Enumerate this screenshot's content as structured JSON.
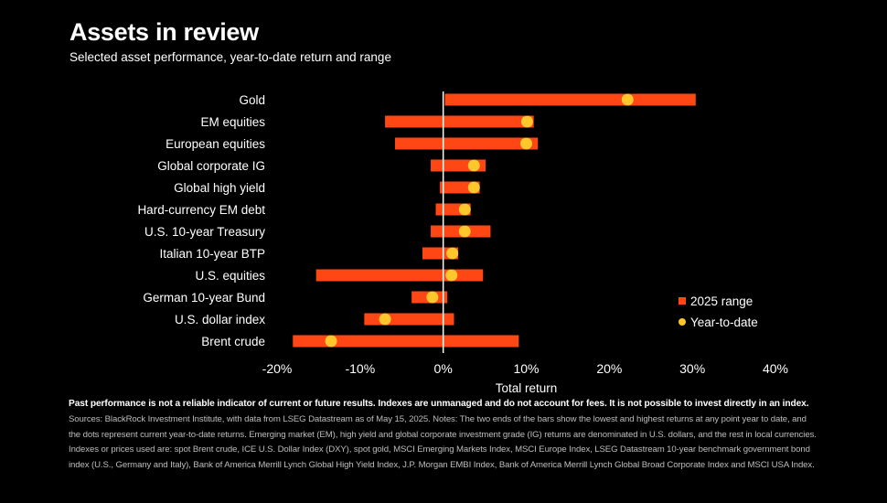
{
  "header": {
    "title": "Assets in review",
    "subtitle": "Selected asset performance, year-to-date return and range"
  },
  "chart_data": {
    "type": "bar",
    "subtype": "floating range bars with dot markers (horizontal)",
    "categories": [
      "Gold",
      "EM equities",
      "European equities",
      "Global corporate IG",
      "Global high yield",
      "Hard-currency EM debt",
      "U.S. 10-year Treasury",
      "Italian 10-year BTP",
      "U.S. equities",
      "German 10-year Bund",
      "U.S. dollar index",
      "Brent crude"
    ],
    "series": [
      {
        "name": "2025 range",
        "kind": "range",
        "color": "#ff4713",
        "low": [
          0.2,
          -7.0,
          -5.8,
          -1.5,
          -0.4,
          -0.9,
          -1.5,
          -2.5,
          -15.3,
          -3.8,
          -9.5,
          -18.1
        ],
        "high": [
          30.4,
          10.9,
          11.4,
          5.1,
          4.4,
          3.3,
          5.7,
          1.8,
          4.8,
          0.5,
          1.3,
          9.1
        ]
      },
      {
        "name": "Year-to-date",
        "kind": "dot",
        "color": "#ffc72c",
        "values": [
          22.2,
          10.1,
          10.0,
          3.7,
          3.7,
          2.6,
          2.6,
          1.1,
          1.0,
          -1.3,
          -7.0,
          -13.5
        ]
      }
    ],
    "xlabel": "Total return",
    "xlim": [
      -20,
      40
    ],
    "xticks": [
      -20,
      -10,
      0,
      10,
      20,
      30,
      40
    ],
    "xtick_labels": [
      "-20%",
      "-10%",
      "0%",
      "10%",
      "20%",
      "30%",
      "40%"
    ],
    "grid": false,
    "legend_position": "bottom-right",
    "legend": [
      "2025 range",
      "Year-to-date"
    ]
  },
  "footnote": {
    "bold": "Past performance is not a reliable indicator of current or future results. Indexes are unmanaged and do not account for fees. It is not possible to invest directly in an index.",
    "text": " Sources: BlackRock Investment Institute, with data from LSEG Datastream as of May 15, 2025. Notes: The two ends of the bars show the lowest and highest returns at any point year to date, and the dots represent current year-to-date returns. Emerging market (EM), high yield and global corporate investment grade (IG) returns are denominated in U.S. dollars, and the rest in local currencies. Indexes or prices used are: spot Brent crude, ICE U.S. Dollar Index (DXY), spot gold, MSCI Emerging Markets Index, MSCI Europe Index, LSEG Datastream 10-year benchmark government bond index (U.S., Germany and Italy), Bank of America Merrill Lynch Global High Yield Index, J.P. Morgan EMBI Index, Bank of America Merrill Lynch Global Broad Corporate Index and MSCI USA Index."
  }
}
